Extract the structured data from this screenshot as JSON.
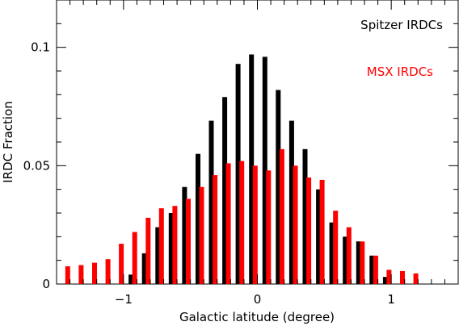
{
  "chart_data": {
    "type": "bar",
    "xlabel": "Galactic latitude (degree)",
    "ylabel": "IRDC Fraction",
    "xlim": [
      -1.5,
      1.5
    ],
    "ylim": [
      0,
      0.12
    ],
    "x_ticks": [
      -1,
      0,
      1
    ],
    "x_tick_labels": [
      "−1",
      "0",
      "1"
    ],
    "y_ticks": [
      0,
      0.05,
      0.1
    ],
    "y_tick_labels": [
      "0",
      "0.05",
      "0.1"
    ],
    "legend_placement": "top-right",
    "grid": false,
    "series": [
      {
        "name": "Spitzer IRDCs",
        "color": "#000000",
        "x": [
          -0.95,
          -0.85,
          -0.75,
          -0.65,
          -0.55,
          -0.45,
          -0.35,
          -0.25,
          -0.15,
          -0.05,
          0.05,
          0.15,
          0.25,
          0.35,
          0.45,
          0.55,
          0.65,
          0.75,
          0.85,
          0.95
        ],
        "values": [
          0.004,
          0.013,
          0.024,
          0.03,
          0.041,
          0.055,
          0.069,
          0.079,
          0.093,
          0.097,
          0.096,
          0.082,
          0.069,
          0.057,
          0.04,
          0.026,
          0.02,
          0.018,
          0.012,
          0.003
        ]
      },
      {
        "name": "MSX IRDCs",
        "color": "#ff0000",
        "x": [
          -1.35,
          -1.25,
          -1.15,
          -1.05,
          -0.95,
          -0.85,
          -0.75,
          -0.65,
          -0.55,
          -0.45,
          -0.35,
          -0.25,
          -0.15,
          -0.05,
          0.05,
          0.15,
          0.25,
          0.35,
          0.45,
          0.55,
          0.65,
          0.75,
          0.85,
          0.95,
          1.05,
          1.15,
          1.25
        ],
        "values": [
          0.0075,
          0.008,
          0.009,
          0.0105,
          0.017,
          0.022,
          0.028,
          0.032,
          0.033,
          0.036,
          0.041,
          0.046,
          0.051,
          0.052,
          0.05,
          0.048,
          0.057,
          0.05,
          0.045,
          0.044,
          0.031,
          0.024,
          0.018,
          0.012,
          0.006,
          0.0055,
          0.0045
        ]
      }
    ]
  }
}
